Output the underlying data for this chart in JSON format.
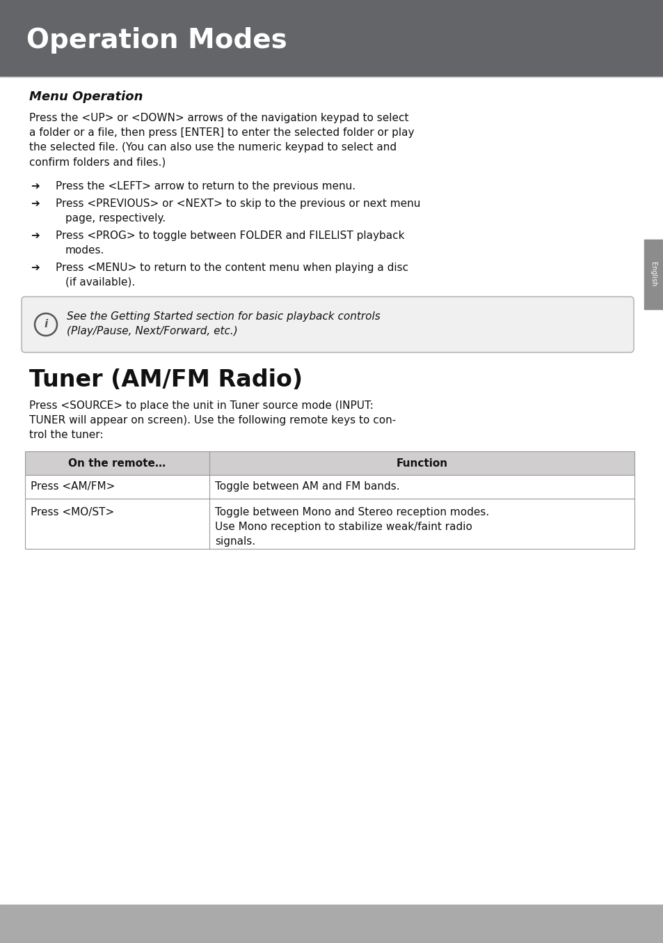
{
  "title": "Operation Modes",
  "title_bg": "#636569",
  "title_color": "#ffffff",
  "title_fontsize": 28,
  "section1_heading": "Menu Operation",
  "intro_lines": [
    "Press the <UP> or <DOWN> arrows of the navigation keypad to select",
    "a folder or a file, then press [ENTER] to enter the selected folder or play",
    "the selected file. (You can also use the numeric keypad to select and",
    "confirm folders and files.)"
  ],
  "bullet_lines": [
    [
      "Press the <LEFT> arrow to return to the previous menu.",
      ""
    ],
    [
      "Press <PREVIOUS> or <NEXT> to skip to the previous or next menu",
      "page, respectively."
    ],
    [
      "Press <PROG> to toggle between FOLDER and FILELIST playback",
      "modes."
    ],
    [
      "Press <MENU> to return to the content menu when playing a disc",
      "(if available)."
    ]
  ],
  "info_line1": "See the Getting Started section for basic playback controls",
  "info_line2": "(Play/Pause, Next/Forward, etc.)",
  "section2_heading": "Tuner (AM/FM Radio)",
  "s2_intro_lines": [
    "Press <SOURCE> to place the unit in Tuner source mode (INPUT:",
    "TUNER will appear on screen). Use the following remote keys to con-",
    "trol the tuner:"
  ],
  "table_header": [
    "On the remote…",
    "Function"
  ],
  "table_row1": [
    "Press <AM/FM>",
    "Toggle between AM and FM bands."
  ],
  "table_row2_col1": "Press <MO/ST>",
  "table_row2_col2": [
    "Toggle between Mono and Stereo reception modes.",
    "Use Mono reception to stabilize weak/faint radio",
    "signals."
  ],
  "sidebar_text": "English",
  "sidebar_bg": "#8c8c8c",
  "bg_color": "#ffffff",
  "bottom_bg": "#aaaaaa",
  "header_bg": "#636569",
  "body_font_size": 11,
  "table_header_bg": "#d0cece",
  "info_box_bg": "#f0f0f0",
  "info_box_border": "#aaaaaa"
}
